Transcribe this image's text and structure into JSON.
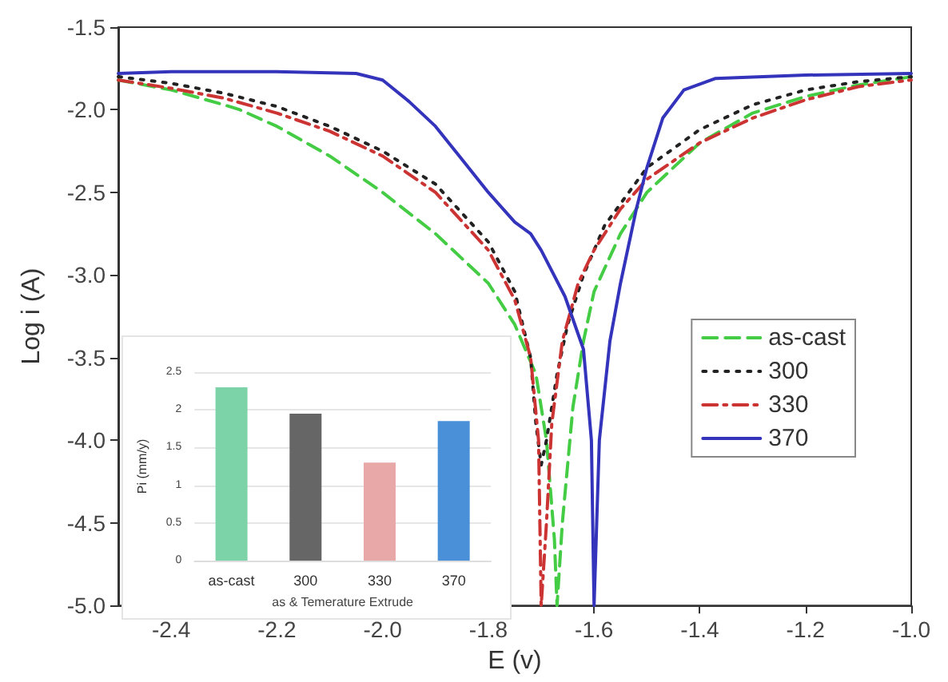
{
  "chart_data": [
    {
      "type": "line",
      "xlabel": "E (v)",
      "ylabel": "Log i (A)",
      "xlim": [
        -2.5,
        -1.0
      ],
      "xticks": [
        -2.4,
        -2.2,
        {
          "value": -2.0,
          "label": "-2.0"
        },
        -1.8,
        -1.6,
        -1.4,
        -1.2,
        {
          "value": -1.0,
          "label": "-1.0"
        }
      ],
      "ylim": [
        -5.0,
        -1.5
      ],
      "yticks": [
        {
          "value": -5.0,
          "label": "-5.0"
        },
        -4.5,
        {
          "value": -4.0,
          "label": "-4.0"
        },
        -3.5,
        {
          "value": -3.0,
          "label": "-3.0"
        },
        -2.5,
        {
          "value": -2.0,
          "label": "-2.0"
        },
        -1.5
      ],
      "grid": false,
      "legend": "right",
      "marker": "none",
      "series": [
        {
          "name": "as-cast",
          "color": "#44cc44",
          "line_style": "dashed",
          "x": [
            -2.5,
            -2.4,
            -2.3,
            -2.27,
            -2.2,
            -2.1,
            -2.0,
            -1.9,
            -1.8,
            -1.75,
            -1.71,
            -1.69,
            -1.675,
            -1.67,
            -1.66,
            -1.64,
            -1.62,
            -1.6,
            -1.55,
            -1.5,
            -1.4,
            -1.3,
            -1.2,
            -1.1,
            -1.0
          ],
          "values": [
            -1.82,
            -1.88,
            -1.97,
            -2.0,
            -2.1,
            -2.28,
            -2.5,
            -2.75,
            -3.05,
            -3.3,
            -3.6,
            -4.0,
            -4.6,
            -5.0,
            -4.5,
            -3.8,
            -3.4,
            -3.1,
            -2.75,
            -2.5,
            -2.2,
            -2.02,
            -1.92,
            -1.85,
            -1.8
          ]
        },
        {
          "name": "300",
          "color": "#222222",
          "line_style": "dotted",
          "x": [
            -2.5,
            -2.4,
            -2.3,
            -2.2,
            -2.1,
            -2.0,
            -1.9,
            -1.8,
            -1.75,
            -1.72,
            -1.71,
            -1.7,
            -1.69,
            -1.67,
            -1.65,
            -1.62,
            -1.58,
            -1.5,
            -1.4,
            -1.3,
            -1.2,
            -1.1,
            -1.0
          ],
          "values": [
            -1.8,
            -1.84,
            -1.9,
            -1.98,
            -2.1,
            -2.25,
            -2.45,
            -2.8,
            -3.1,
            -3.5,
            -3.9,
            -4.15,
            -4.0,
            -3.6,
            -3.3,
            -3.0,
            -2.7,
            -2.35,
            -2.12,
            -1.97,
            -1.88,
            -1.83,
            -1.8
          ]
        },
        {
          "name": "330",
          "color": "#cc3333",
          "line_style": "dashdot",
          "x": [
            -2.5,
            -2.4,
            -2.3,
            -2.2,
            -2.1,
            -2.0,
            -1.9,
            -1.8,
            -1.75,
            -1.72,
            -1.705,
            -1.7,
            -1.69,
            -1.68,
            -1.66,
            -1.63,
            -1.6,
            -1.55,
            -1.5,
            -1.4,
            -1.3,
            -1.2,
            -1.1,
            -1.0
          ],
          "values": [
            -1.82,
            -1.87,
            -1.93,
            -2.02,
            -2.13,
            -2.28,
            -2.5,
            -2.85,
            -3.15,
            -3.5,
            -4.0,
            -5.0,
            -4.5,
            -3.9,
            -3.4,
            -3.05,
            -2.85,
            -2.6,
            -2.42,
            -2.2,
            -2.05,
            -1.94,
            -1.86,
            -1.82
          ]
        },
        {
          "name": "370",
          "color": "#3333bb",
          "line_style": "solid",
          "x": [
            -2.5,
            -2.4,
            -2.2,
            -2.05,
            -2.0,
            -1.95,
            -1.9,
            -1.85,
            -1.8,
            -1.75,
            -1.72,
            -1.7,
            -1.655,
            -1.62,
            -1.605,
            -1.6,
            -1.595,
            -1.59,
            -1.57,
            -1.55,
            -1.52,
            -1.5,
            -1.47,
            -1.43,
            -1.37,
            -1.2,
            -1.0
          ],
          "values": [
            -1.78,
            -1.77,
            -1.77,
            -1.78,
            -1.82,
            -1.95,
            -2.1,
            -2.3,
            -2.5,
            -2.68,
            -2.75,
            -2.85,
            -3.13,
            -3.45,
            -4.0,
            -5.0,
            -4.5,
            -4.0,
            -3.4,
            -3.05,
            -2.6,
            -2.35,
            -2.05,
            -1.88,
            -1.81,
            -1.79,
            -1.78
          ]
        }
      ]
    },
    {
      "type": "bar",
      "xlabel": "as & Temerature Extrude",
      "ylabel": "Pi (mm/y)",
      "categories": [
        "as-cast",
        "300",
        "330",
        "370"
      ],
      "values": [
        2.3,
        1.95,
        1.3,
        1.85
      ],
      "colors": [
        "#7dd3a8",
        "#666666",
        "#e8a8a8",
        "#4a90d9"
      ],
      "ylim": [
        0,
        2.5
      ],
      "yticks": [
        0,
        0.5,
        1,
        1.5,
        2,
        2.5
      ],
      "grid": "y"
    }
  ]
}
